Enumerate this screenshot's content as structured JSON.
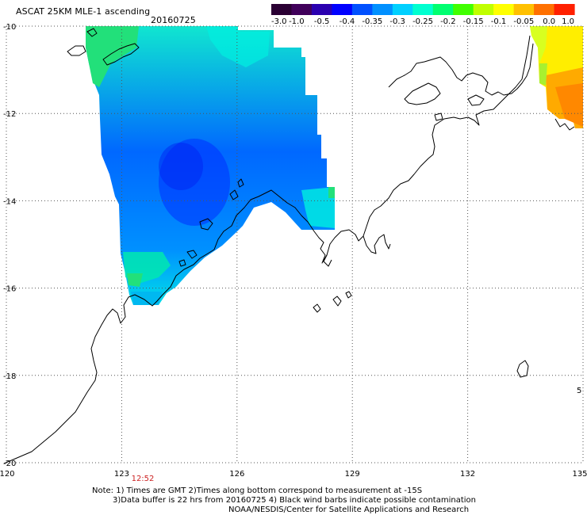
{
  "header": {
    "title": "ASCAT 25KM MLE-1 ascending",
    "date": "20160725"
  },
  "colorbar": {
    "tick_labels": [
      "-3.0",
      "-1.0",
      "-0.5",
      "-0.4",
      "-0.35",
      "-0.3",
      "-0.25",
      "-0.2",
      "-0.15",
      "-0.1",
      "-0.05",
      "0.0",
      "1.0"
    ],
    "colors": [
      "#2a0033",
      "#40005a",
      "#2a00b0",
      "#0000ff",
      "#0050ff",
      "#0090ff",
      "#00d0ff",
      "#00ffd0",
      "#00ff70",
      "#40ff00",
      "#c0ff00",
      "#ffff00",
      "#ffc000",
      "#ff7000",
      "#ff2000"
    ]
  },
  "map": {
    "lat_labels": [
      "-10",
      "-12",
      "-14",
      "-16",
      "-18",
      "-20"
    ],
    "lon_labels": [
      "120",
      "123",
      "126",
      "129",
      "132",
      "135"
    ],
    "lat_values": [
      -10,
      -12,
      -14,
      -16,
      -18,
      -20
    ],
    "lon_values": [
      120,
      123,
      126,
      129,
      132,
      135
    ],
    "time_labels": [
      "12:52"
    ],
    "edge_mark": "5",
    "swath_colors": {
      "green": "#22e07a",
      "cyan": "#00f0e0",
      "lightblue": "#00b8f0",
      "blue": "#0080ff",
      "deepblue": "#0040ff",
      "yellow": "#ffee00",
      "orange": "#ff8800"
    }
  },
  "notes": {
    "line1": "Note: 1) Times are GMT 2)Times along bottom correspond to measurement at -15S",
    "line2": "3)Data buffer is 22 hrs from 20160725 4) Black wind barbs indicate possible contamination",
    "line3": "NOAA/NESDIS/Center for Satellite Applications and Research"
  }
}
